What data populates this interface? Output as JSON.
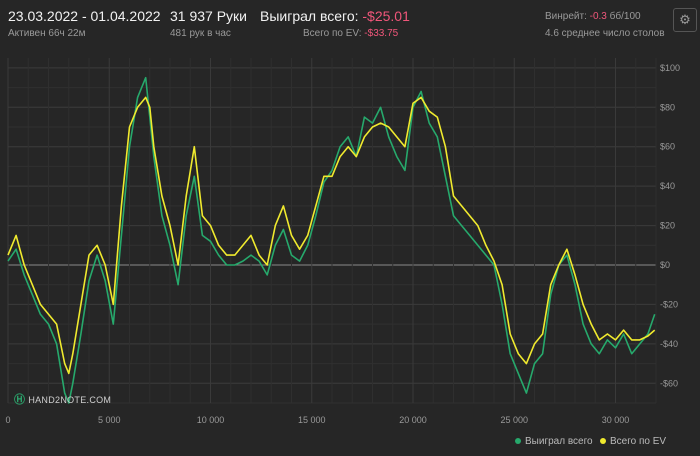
{
  "header": {
    "date_range": "23.03.2022 - 01.04.2022",
    "active": "Активен 66ч 22м",
    "hands": "31 937 Руки",
    "hands_per_hour": "481 рук в час",
    "won_label": "Выиграл всего:",
    "won_value": "-$25.01",
    "ev_label": "Всего по EV:",
    "ev_value": "-$33.75",
    "winrate_label": "Винрейт:",
    "winrate_value": "-0.3",
    "winrate_unit": "бб/100",
    "avg_tables": "4.6 среднее число столов",
    "settings_icon": "gear-icon"
  },
  "logo_text": "HAND2NOTE.COM",
  "colors": {
    "background": "#262626",
    "won": "#26a96c",
    "ev": "#f0ea2e",
    "negative": "#f0567a"
  },
  "chart_data": {
    "type": "line",
    "xlim": [
      0,
      32000
    ],
    "ylim": [
      -70,
      105
    ],
    "x_ticks": [
      0,
      5000,
      10000,
      15000,
      20000,
      25000,
      30000
    ],
    "x_tick_labels": [
      "0",
      "5 000",
      "10 000",
      "15 000",
      "20 000",
      "25 000",
      "30 000"
    ],
    "y_ticks": [
      100,
      80,
      60,
      40,
      20,
      0,
      -20,
      -40,
      -60
    ],
    "y_tick_labels": [
      "$100",
      "$80",
      "$60",
      "$40",
      "$20",
      "$0",
      "-$20",
      "-$40",
      "-$60"
    ],
    "grid": true,
    "legend_position": "bottom-right",
    "series": [
      {
        "name": "Выиграл всего",
        "color": "#26a96c",
        "x": [
          0,
          400,
          800,
          1200,
          1600,
          2000,
          2400,
          2800,
          3000,
          3200,
          3600,
          4000,
          4400,
          4800,
          5200,
          5600,
          6000,
          6400,
          6800,
          7000,
          7200,
          7600,
          8000,
          8400,
          8800,
          9200,
          9600,
          10000,
          10400,
          10800,
          11200,
          11600,
          12000,
          12400,
          12800,
          13200,
          13600,
          14000,
          14400,
          14800,
          15200,
          15600,
          16000,
          16400,
          16800,
          17200,
          17600,
          18000,
          18400,
          18800,
          19200,
          19600,
          20000,
          20400,
          20800,
          21200,
          21600,
          22000,
          22400,
          22800,
          23200,
          23600,
          24000,
          24400,
          24800,
          25200,
          25600,
          26000,
          26400,
          26800,
          27200,
          27600,
          28000,
          28400,
          28800,
          29200,
          29600,
          30000,
          30400,
          30800,
          31200,
          31600,
          31937
        ],
        "values": [
          2,
          8,
          -5,
          -15,
          -25,
          -30,
          -40,
          -65,
          -70,
          -60,
          -35,
          -8,
          5,
          -8,
          -30,
          15,
          60,
          85,
          95,
          75,
          55,
          25,
          10,
          -10,
          25,
          45,
          15,
          12,
          5,
          0,
          0,
          2,
          5,
          2,
          -5,
          10,
          18,
          5,
          2,
          10,
          25,
          42,
          48,
          60,
          65,
          55,
          75,
          72,
          80,
          65,
          55,
          48,
          80,
          88,
          72,
          65,
          45,
          25,
          20,
          15,
          10,
          5,
          0,
          -20,
          -45,
          -55,
          -65,
          -50,
          -45,
          -15,
          0,
          5,
          -10,
          -30,
          -40,
          -45,
          -38,
          -42,
          -35,
          -45,
          -40,
          -35,
          -25
        ]
      },
      {
        "name": "Всего по EV",
        "color": "#f0ea2e",
        "x": [
          0,
          400,
          800,
          1200,
          1600,
          2000,
          2400,
          2800,
          3000,
          3200,
          3600,
          4000,
          4400,
          4800,
          5200,
          5600,
          6000,
          6400,
          6800,
          7000,
          7200,
          7600,
          8000,
          8400,
          8800,
          9200,
          9600,
          10000,
          10400,
          10800,
          11200,
          11600,
          12000,
          12400,
          12800,
          13200,
          13600,
          14000,
          14400,
          14800,
          15200,
          15600,
          16000,
          16400,
          16800,
          17200,
          17600,
          18000,
          18400,
          18800,
          19200,
          19600,
          20000,
          20400,
          20800,
          21200,
          21600,
          22000,
          22400,
          22800,
          23200,
          23600,
          24000,
          24400,
          24800,
          25200,
          25600,
          26000,
          26400,
          26800,
          27200,
          27600,
          28000,
          28400,
          28800,
          29200,
          29600,
          30000,
          30400,
          30800,
          31200,
          31600,
          31937
        ],
        "values": [
          5,
          15,
          0,
          -10,
          -20,
          -25,
          -30,
          -50,
          -55,
          -45,
          -20,
          5,
          10,
          0,
          -20,
          30,
          70,
          80,
          85,
          80,
          60,
          35,
          20,
          0,
          35,
          60,
          25,
          20,
          10,
          5,
          5,
          10,
          15,
          5,
          0,
          20,
          30,
          15,
          8,
          15,
          30,
          45,
          45,
          55,
          60,
          55,
          65,
          70,
          72,
          70,
          65,
          60,
          82,
          85,
          78,
          75,
          60,
          35,
          30,
          25,
          20,
          10,
          2,
          -10,
          -35,
          -45,
          -50,
          -40,
          -35,
          -10,
          0,
          8,
          -5,
          -20,
          -30,
          -38,
          -35,
          -38,
          -33,
          -38,
          -38,
          -36,
          -33
        ]
      }
    ]
  }
}
